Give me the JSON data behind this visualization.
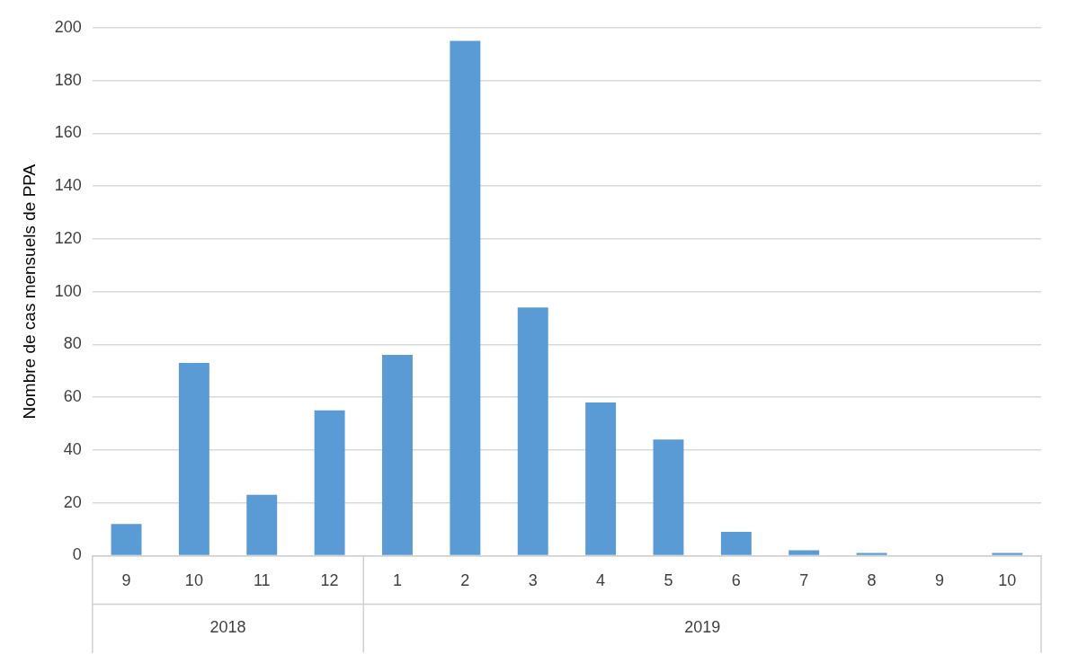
{
  "chart_data": {
    "type": "bar",
    "ylabel": "Nombre de cas mensuels de PPA",
    "categories": [
      "9",
      "10",
      "11",
      "12",
      "1",
      "2",
      "3",
      "4",
      "5",
      "6",
      "7",
      "8",
      "9",
      "10"
    ],
    "values": [
      12,
      73,
      23,
      55,
      76,
      195,
      94,
      58,
      44,
      9,
      2,
      1,
      0,
      1
    ],
    "color": "#5b9bd5",
    "ylim": [
      0,
      200
    ],
    "yticks": [
      0,
      20,
      40,
      60,
      80,
      100,
      120,
      140,
      160,
      180,
      200
    ],
    "grid": "y",
    "annotations": [
      "2018",
      "2019"
    ]
  }
}
